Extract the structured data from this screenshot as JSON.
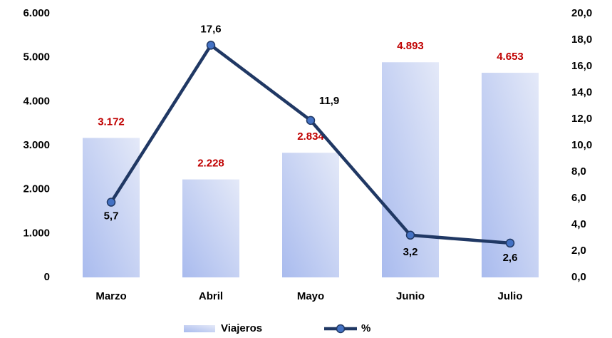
{
  "chart_data": {
    "type": "combo",
    "categories": [
      "Marzo",
      "Abril",
      "Mayo",
      "Junio",
      "Julio"
    ],
    "series": [
      {
        "name": "Viajeros",
        "type": "bar",
        "color": "#a9bbee",
        "label_color": "#c00000",
        "values": [
          3172,
          2228,
          2834,
          4893,
          4653
        ],
        "value_labels": [
          "3.172",
          "2.228",
          "2.834",
          "4.893",
          "4.653"
        ]
      },
      {
        "name": "%",
        "type": "line",
        "axis": "y2",
        "color": "#203864",
        "marker_color": "#4472c4",
        "values": [
          5.7,
          17.6,
          11.9,
          3.2,
          2.6
        ],
        "value_labels": [
          "5,7",
          "17,6",
          "11,9",
          "3,2",
          "2,6"
        ]
      }
    ],
    "ylim": [
      0,
      6000
    ],
    "yticks": [
      0,
      {
        "value": 1000,
        "label": "1.000"
      },
      {
        "value": 2000,
        "label": "2.000"
      },
      {
        "value": 3000,
        "label": "3.000"
      },
      {
        "value": 4000,
        "label": "4.000"
      },
      {
        "value": 5000,
        "label": "5.000"
      },
      {
        "value": 6000,
        "label": "6.000"
      }
    ],
    "y2lim": [
      0,
      20
    ],
    "y2ticks": [
      {
        "value": 0,
        "label": "0,0"
      },
      {
        "value": 2,
        "label": "2,0"
      },
      {
        "value": 4,
        "label": "4,0"
      },
      {
        "value": 6,
        "label": "6,0"
      },
      {
        "value": 8,
        "label": "8,0"
      },
      {
        "value": 10,
        "label": "10,0"
      },
      {
        "value": 12,
        "label": "12,0"
      },
      {
        "value": 14,
        "label": "14,0"
      },
      {
        "value": 16,
        "label": "16,0"
      },
      {
        "value": 18,
        "label": "18,0"
      },
      {
        "value": 20,
        "label": "20,0"
      }
    ],
    "grid": false,
    "legend": "bottom"
  }
}
